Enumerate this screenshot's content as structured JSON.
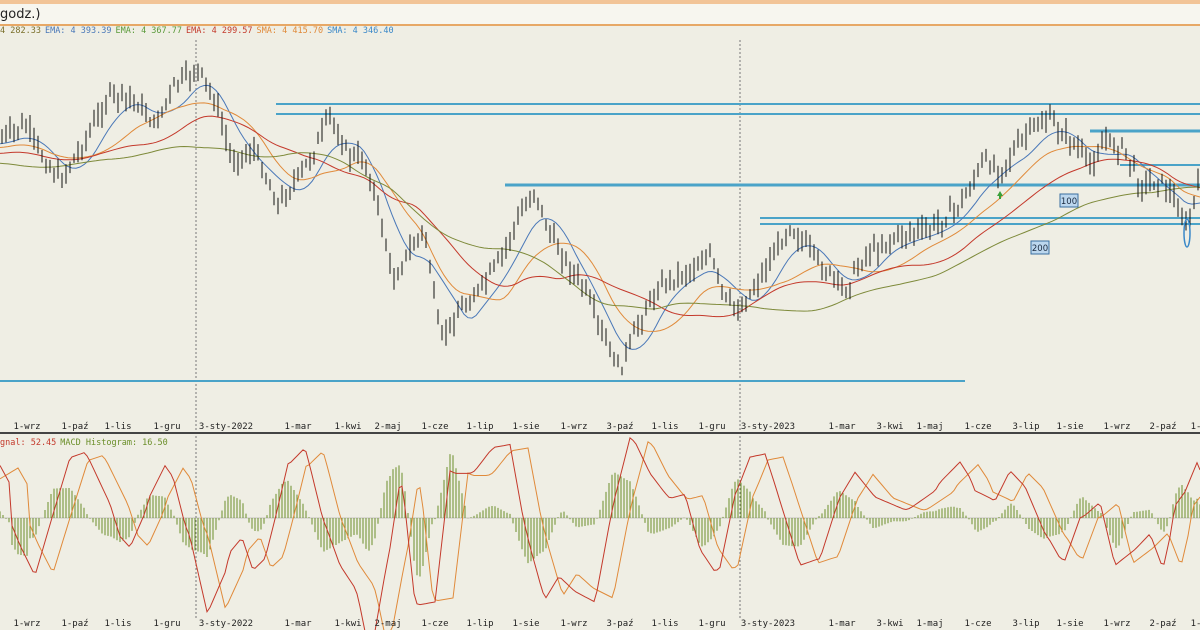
{
  "header": {
    "title": "godz.)"
  },
  "legend_main": [
    {
      "text": "4 282.33",
      "color": "#7a6f2a"
    },
    {
      "text": "EMA: 4 393.39",
      "color": "#4a78b8"
    },
    {
      "text": "EMA: 4 367.77",
      "color": "#5a9a3a"
    },
    {
      "text": "EMA: 4 299.57",
      "color": "#c4392b"
    },
    {
      "text": "SMA: 4 415.70",
      "color": "#e08a3a"
    },
    {
      "text": "SMA: 4 346.40",
      "color": "#3a88c8"
    }
  ],
  "legend_macd": [
    {
      "text": "gnal: 52.45",
      "color": "#c4392b"
    },
    {
      "text": "MACD Histogram: 16.50",
      "color": "#6b8f2a"
    }
  ],
  "colors": {
    "background": "#efeee4",
    "candles": "#111111",
    "resistance": "#4aa3c8",
    "ema_blue": "#4a78b8",
    "ema_orange": "#e08a3a",
    "ema_red": "#c4392b",
    "ema_olive": "#7e8a3a",
    "histogram": "#6b8f2a",
    "macd_line": "#c4392b",
    "signal_line": "#e08a3a"
  },
  "chart_data": [
    {
      "type": "candlestick",
      "x_tick_labels": [
        "1-wrz",
        "1-paź",
        "1-lis",
        "1-gru",
        "3-sty-2022",
        "1-mar",
        "1-kwi",
        "2-maj",
        "1-cze",
        "1-lip",
        "1-sie",
        "1-wrz",
        "3-paź",
        "1-lis",
        "1-gru",
        "3-sty-2023",
        "1-mar",
        "3-kwi",
        "1-maj",
        "1-cze",
        "3-lip",
        "1-sie",
        "1-wrz",
        "2-paź",
        "1-"
      ],
      "annotations": [
        "100",
        "200"
      ],
      "markers": [
        "up-arrow"
      ],
      "series": [
        {
          "name": "EMA",
          "value": "4 393.39"
        },
        {
          "name": "EMA",
          "value": "4 367.77"
        },
        {
          "name": "EMA",
          "value": "4 299.57"
        },
        {
          "name": "SMA",
          "value": "4 415.70"
        },
        {
          "name": "SMA",
          "value": "4 346.40"
        }
      ]
    },
    {
      "type": "macd",
      "signal": 52.45,
      "histogram": 16.5,
      "x_tick_labels": [
        "1-wrz",
        "1-paź",
        "1-lis",
        "1-gru",
        "3-sty-2022",
        "1-mar",
        "1-kwi",
        "2-maj",
        "1-cze",
        "1-lip",
        "1-sie",
        "1-wrz",
        "3-paź",
        "1-lis",
        "1-gru",
        "3-sty-2023",
        "1-mar",
        "3-kwi",
        "1-maj",
        "1-cze",
        "3-lip",
        "1-sie",
        "1-wrz",
        "2-paź",
        "1-"
      ]
    }
  ]
}
